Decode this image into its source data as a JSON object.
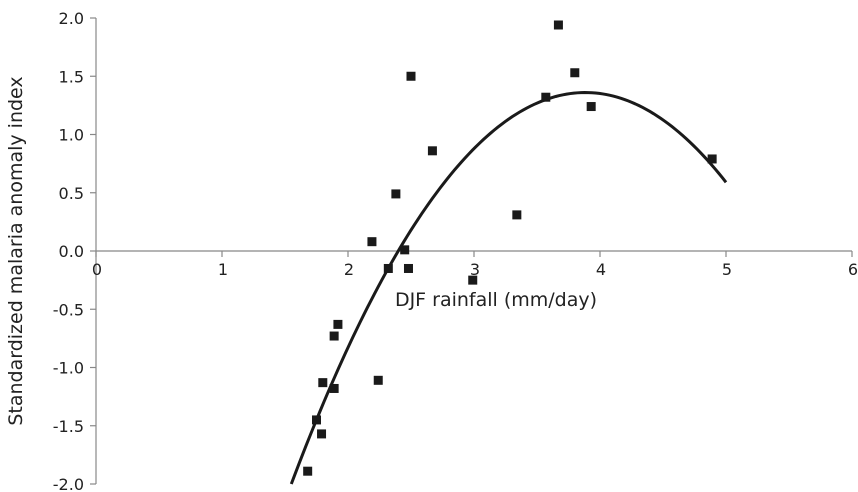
{
  "chart_data": {
    "type": "scatter",
    "title": "",
    "xlabel": "DJF rainfall (mm/day)",
    "ylabel": "Standardized malaria anomaly index",
    "xlim": [
      0,
      6
    ],
    "ylim": [
      -2.0,
      2.0
    ],
    "xticks": [
      0,
      1,
      2,
      3,
      4,
      5,
      6
    ],
    "xtick_labels": [
      "0",
      "1",
      "2",
      "3",
      "4",
      "5",
      "6"
    ],
    "yticks": [
      2.0,
      1.5,
      1.0,
      0.5,
      0.0,
      -0.5,
      -1.0,
      -1.5,
      -2.0
    ],
    "ytick_labels": [
      "2.0",
      "1.5",
      "1.0",
      "0.5",
      "0.0",
      "-0.5",
      "-1.0",
      "-1.5",
      "-2.0"
    ],
    "grid": false,
    "legend": "none",
    "marker": "square",
    "color": "#1a1a1a",
    "series": [
      {
        "points": [
          {
            "x": 1.68,
            "y": -1.89
          },
          {
            "x": 1.75,
            "y": -1.45
          },
          {
            "x": 1.79,
            "y": -1.57
          },
          {
            "x": 1.8,
            "y": -1.13
          },
          {
            "x": 1.89,
            "y": -1.18
          },
          {
            "x": 1.89,
            "y": -0.73
          },
          {
            "x": 1.92,
            "y": -0.63
          },
          {
            "x": 2.19,
            "y": 0.08
          },
          {
            "x": 2.24,
            "y": -1.11
          },
          {
            "x": 2.32,
            "y": -0.15
          },
          {
            "x": 2.38,
            "y": 0.49
          },
          {
            "x": 2.45,
            "y": 0.01
          },
          {
            "x": 2.48,
            "y": -0.15
          },
          {
            "x": 2.5,
            "y": 1.5
          },
          {
            "x": 2.67,
            "y": 0.86
          },
          {
            "x": 2.99,
            "y": -0.25
          },
          {
            "x": 3.34,
            "y": 0.31
          },
          {
            "x": 3.57,
            "y": 1.32
          },
          {
            "x": 3.67,
            "y": 1.94
          },
          {
            "x": 3.8,
            "y": 1.53
          },
          {
            "x": 3.93,
            "y": 1.24
          },
          {
            "x": 4.89,
            "y": 0.79
          }
        ]
      }
    ],
    "trendline": {
      "type": "polynomial",
      "order": 2,
      "x_range": [
        1.55,
        5.0
      ],
      "points": [
        {
          "x": 1.55,
          "y": -2.0
        },
        {
          "x": 3.9,
          "y": 1.36
        },
        {
          "x": 5.0,
          "y": 0.59
        }
      ]
    }
  }
}
